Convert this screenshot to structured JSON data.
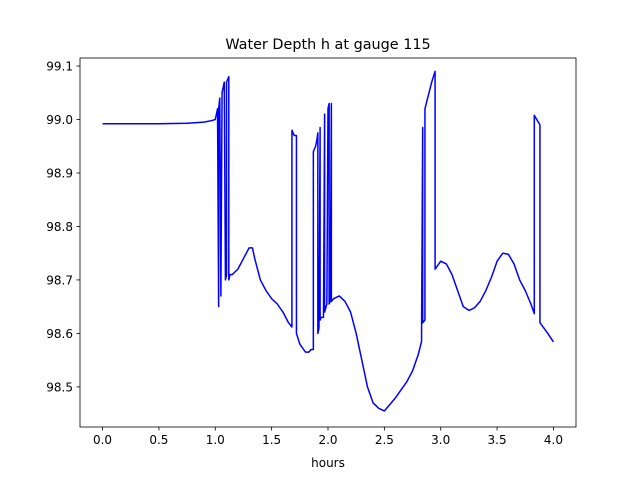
{
  "chart_data": {
    "type": "line",
    "title": "Water Depth h at gauge 115",
    "xlabel": "hours",
    "ylabel": "",
    "xlim": [
      -0.2,
      4.2
    ],
    "ylim": [
      98.425,
      99.115
    ],
    "grid": false,
    "x_ticks": [
      0.0,
      0.5,
      1.0,
      1.5,
      2.0,
      2.5,
      3.0,
      3.5,
      4.0
    ],
    "x_tick_labels": [
      "0.0",
      "0.5",
      "1.0",
      "1.5",
      "2.0",
      "2.5",
      "3.0",
      "3.5",
      "4.0"
    ],
    "y_ticks": [
      98.5,
      98.6,
      98.7,
      98.8,
      98.9,
      99.0,
      99.1
    ],
    "y_tick_labels": [
      "98.5",
      "98.6",
      "98.7",
      "98.8",
      "98.9",
      "99.0",
      "99.1"
    ],
    "series": [
      {
        "color": "#0000ff",
        "x": [
          0.0,
          0.5,
          0.75,
          0.9,
          0.97,
          1.0,
          1.02,
          1.03,
          1.03,
          1.04,
          1.05,
          1.05,
          1.06,
          1.06,
          1.07,
          1.08,
          1.09,
          1.1,
          1.1,
          1.12,
          1.12,
          1.13,
          1.13,
          1.15,
          1.2,
          1.25,
          1.3,
          1.33,
          1.35,
          1.4,
          1.45,
          1.5,
          1.55,
          1.6,
          1.65,
          1.68,
          1.68,
          1.7,
          1.72,
          1.72,
          1.75,
          1.8,
          1.83,
          1.85,
          1.87,
          1.87,
          1.89,
          1.9,
          1.91,
          1.91,
          1.92,
          1.93,
          1.93,
          1.94,
          1.96,
          1.97,
          1.97,
          1.99,
          2.0,
          2.01,
          2.01,
          2.02,
          2.03,
          2.03,
          2.05,
          2.1,
          2.15,
          2.2,
          2.25,
          2.3,
          2.35,
          2.4,
          2.45,
          2.5,
          2.6,
          2.7,
          2.75,
          2.8,
          2.83,
          2.83,
          2.84,
          2.84,
          2.86,
          2.86,
          2.92,
          2.95,
          2.95,
          3.0,
          3.05,
          3.1,
          3.15,
          3.2,
          3.25,
          3.3,
          3.35,
          3.4,
          3.45,
          3.5,
          3.55,
          3.6,
          3.65,
          3.7,
          3.75,
          3.8,
          3.83,
          3.83,
          3.88,
          3.88,
          3.95,
          4.0
        ],
        "y": [
          98.992,
          98.992,
          98.993,
          98.995,
          98.998,
          99.0,
          99.02,
          98.65,
          99.02,
          99.04,
          98.67,
          98.68,
          99.04,
          99.05,
          99.06,
          99.07,
          98.7,
          98.71,
          99.07,
          99.08,
          98.7,
          98.71,
          98.71,
          98.71,
          98.72,
          98.74,
          98.76,
          98.76,
          98.74,
          98.7,
          98.68,
          98.665,
          98.655,
          98.64,
          98.62,
          98.612,
          98.98,
          98.97,
          98.97,
          98.6,
          98.58,
          98.565,
          98.565,
          98.57,
          98.57,
          98.94,
          98.95,
          98.96,
          98.975,
          98.6,
          98.61,
          98.985,
          98.625,
          98.63,
          98.63,
          99.01,
          98.64,
          98.655,
          99.02,
          99.03,
          98.655,
          98.66,
          99.03,
          98.66,
          98.665,
          98.67,
          98.66,
          98.64,
          98.6,
          98.55,
          98.5,
          98.47,
          98.46,
          98.455,
          98.48,
          98.51,
          98.53,
          98.56,
          98.585,
          98.6,
          98.985,
          98.62,
          98.625,
          99.02,
          99.07,
          99.09,
          98.72,
          98.735,
          98.73,
          98.71,
          98.68,
          98.65,
          98.643,
          98.648,
          98.66,
          98.68,
          98.705,
          98.735,
          98.75,
          98.748,
          98.73,
          98.7,
          98.68,
          98.655,
          98.637,
          99.008,
          98.99,
          98.62,
          98.6,
          98.584
        ]
      }
    ]
  }
}
